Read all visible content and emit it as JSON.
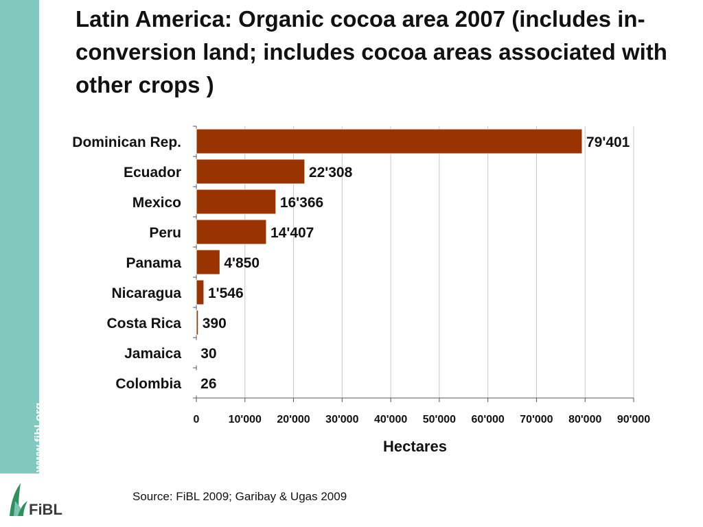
{
  "title": "Latin America: Organic cocoa area 2007 (includes in-conversion land; includes cocoa areas associated with other crops )",
  "side_url": "www.fibl.org",
  "source": "Source: FiBL 2009; Garibay & Ugas 2009",
  "logo_text": "FiBL",
  "colors": {
    "bar": "#993300",
    "band": "#82c8be",
    "logo_green": "#2f8f5f"
  },
  "chart_data": {
    "type": "bar",
    "orientation": "horizontal",
    "title": "Latin America: Organic cocoa area 2007 (includes in-conversion land; includes cocoa areas associated with other crops )",
    "xlabel": "Hectares",
    "ylabel": "",
    "xlim": [
      0,
      90000
    ],
    "xticks": [
      0,
      10000,
      20000,
      30000,
      40000,
      50000,
      60000,
      70000,
      80000,
      90000
    ],
    "xtick_labels": [
      "0",
      "10'000",
      "20'000",
      "30'000",
      "40'000",
      "50'000",
      "60'000",
      "70'000",
      "80'000",
      "90'000"
    ],
    "grid": "vertical",
    "categories": [
      "Dominican Rep.",
      "Ecuador",
      "Mexico",
      "Peru",
      "Panama",
      "Nicaragua",
      "Costa Rica",
      "Jamaica",
      "Colombia"
    ],
    "values": [
      79401,
      22308,
      16366,
      14407,
      4850,
      1546,
      390,
      30,
      26
    ],
    "data_labels": [
      "79'401",
      "22'308",
      "16'366",
      "14'407",
      "4'850",
      "1'546",
      "390",
      "30",
      "26"
    ]
  }
}
